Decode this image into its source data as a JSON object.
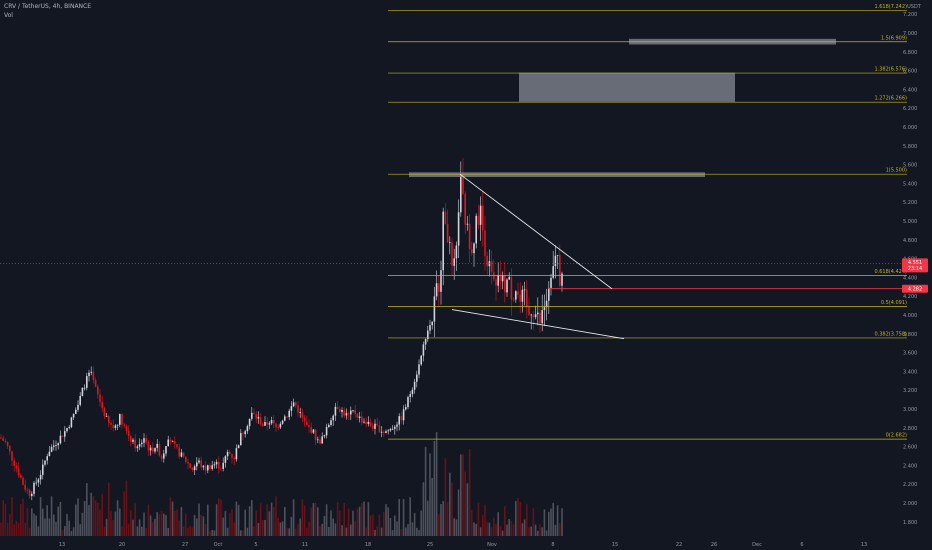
{
  "header": {
    "title": "CRV / TetherUS, 4h, BINANCE",
    "volume_label": "Vol"
  },
  "colors": {
    "background": "#131722",
    "up": "#d1d4dc",
    "down": "#e0151b",
    "fib": "#c6b41f",
    "axis_text": "#9598a1",
    "price_badge": "#f23645",
    "line_badge": "#f23645",
    "zone": "#787b86",
    "trendline": "#e8e8e8"
  },
  "chart_data": {
    "type": "candlestick",
    "symbol": "CRV / TetherUS",
    "timeframe": "4h",
    "exchange": "BINANCE",
    "y_axis": {
      "unit": "USDT",
      "ticks": [
        "7.200",
        "7.000",
        "6.800",
        "6.600",
        "6.400",
        "6.200",
        "6.000",
        "5.800",
        "5.600",
        "5.400",
        "5.200",
        "5.000",
        "4.800",
        "4.600",
        "4.400",
        "4.200",
        "4.000",
        "3.800",
        "3.600",
        "3.400",
        "3.200",
        "3.000",
        "2.800",
        "2.600",
        "2.400",
        "2.200",
        "2.000",
        "1.800"
      ]
    },
    "x_axis": {
      "ticks": [
        "13",
        "20",
        "27",
        "Oct",
        "5",
        "11",
        "18",
        "25",
        "Nov",
        "8",
        "15",
        "22",
        "26",
        "Dec",
        "6",
        "13"
      ]
    },
    "fib_levels": [
      {
        "label": "1.618(7.242)",
        "value": 7.242
      },
      {
        "label": "1.5(6.909)",
        "value": 6.909
      },
      {
        "label": "1.382(6.576)",
        "value": 6.576
      },
      {
        "label": "1.272(6.266)",
        "value": 6.266
      },
      {
        "label": "1(5.500)",
        "value": 5.5
      },
      {
        "label": "0.618(4.424)",
        "value": 4.424
      },
      {
        "label": "0.5(4.091)",
        "value": 4.091
      },
      {
        "label": "0.382(3.758)",
        "value": 3.758
      },
      {
        "label": "0(2.682)",
        "value": 2.682
      }
    ],
    "zones": [
      {
        "from": 6.88,
        "to": 6.94
      },
      {
        "from": 6.27,
        "to": 6.58
      },
      {
        "from": 5.47,
        "to": 5.52
      }
    ],
    "current_price": {
      "value": 4.551,
      "label": "4.551",
      "countdown": "23:14"
    },
    "horizontal_line": {
      "value": 4.282,
      "label": "4.282"
    },
    "trendlines": [
      {
        "from": [
          "Oct 26",
          5.5
        ],
        "to": [
          "Nov 17",
          4.28
        ]
      },
      {
        "from": [
          "Oct 26",
          4.06
        ],
        "to": [
          "Nov 18",
          3.75
        ]
      }
    ],
    "price_path": [
      [
        0,
        2.7
      ],
      [
        6,
        2.64
      ],
      [
        12,
        2.48
      ],
      [
        18,
        2.34
      ],
      [
        24,
        2.18
      ],
      [
        30,
        2.1
      ],
      [
        36,
        2.22
      ],
      [
        42,
        2.35
      ],
      [
        48,
        2.55
      ],
      [
        54,
        2.62
      ],
      [
        60,
        2.7
      ],
      [
        66,
        2.78
      ],
      [
        72,
        2.9
      ],
      [
        78,
        3.05
      ],
      [
        84,
        3.25
      ],
      [
        90,
        3.4
      ],
      [
        96,
        3.2
      ],
      [
        102,
        3.02
      ],
      [
        108,
        2.85
      ],
      [
        114,
        2.8
      ],
      [
        120,
        2.92
      ],
      [
        126,
        2.78
      ],
      [
        132,
        2.65
      ],
      [
        138,
        2.58
      ],
      [
        144,
        2.7
      ],
      [
        150,
        2.55
      ],
      [
        156,
        2.62
      ],
      [
        162,
        2.48
      ],
      [
        168,
        2.72
      ],
      [
        174,
        2.6
      ],
      [
        180,
        2.52
      ],
      [
        186,
        2.45
      ],
      [
        192,
        2.36
      ],
      [
        198,
        2.45
      ],
      [
        204,
        2.36
      ],
      [
        210,
        2.4
      ],
      [
        216,
        2.42
      ],
      [
        222,
        2.38
      ],
      [
        228,
        2.55
      ],
      [
        234,
        2.48
      ],
      [
        240,
        2.7
      ],
      [
        246,
        2.82
      ],
      [
        252,
        2.95
      ],
      [
        258,
        2.9
      ],
      [
        264,
        2.82
      ],
      [
        270,
        2.88
      ],
      [
        276,
        2.8
      ],
      [
        282,
        2.9
      ],
      [
        288,
        2.95
      ],
      [
        294,
        3.08
      ],
      [
        300,
        2.95
      ],
      [
        306,
        2.82
      ],
      [
        312,
        2.78
      ],
      [
        318,
        2.65
      ],
      [
        324,
        2.7
      ],
      [
        330,
        2.88
      ],
      [
        336,
        3.05
      ],
      [
        342,
        2.98
      ],
      [
        348,
        2.92
      ],
      [
        354,
        2.98
      ],
      [
        360,
        2.9
      ],
      [
        366,
        2.86
      ],
      [
        372,
        2.82
      ],
      [
        378,
        2.8
      ],
      [
        384,
        2.76
      ],
      [
        390,
        2.78
      ],
      [
        396,
        2.85
      ],
      [
        402,
        2.92
      ],
      [
        408,
        3.1
      ],
      [
        414,
        3.3
      ],
      [
        420,
        3.5
      ],
      [
        426,
        3.8
      ],
      [
        432,
        3.95
      ],
      [
        436,
        4.25
      ],
      [
        440,
        4.4
      ],
      [
        444,
        5.15
      ],
      [
        448,
        4.85
      ],
      [
        452,
        4.45
      ],
      [
        456,
        4.55
      ],
      [
        460,
        5.5
      ],
      [
        464,
        5.1
      ],
      [
        468,
        4.85
      ],
      [
        472,
        4.75
      ],
      [
        476,
        4.95
      ],
      [
        480,
        5.15
      ],
      [
        484,
        4.8
      ],
      [
        488,
        4.55
      ],
      [
        492,
        4.38
      ],
      [
        496,
        4.25
      ],
      [
        500,
        4.4
      ],
      [
        504,
        4.3
      ],
      [
        508,
        4.38
      ],
      [
        512,
        4.22
      ],
      [
        516,
        4.3
      ],
      [
        520,
        4.12
      ],
      [
        524,
        4.2
      ],
      [
        528,
        3.98
      ],
      [
        532,
        4.1
      ],
      [
        536,
        4.0
      ],
      [
        540,
        3.92
      ],
      [
        544,
        4.08
      ],
      [
        548,
        4.2
      ],
      [
        552,
        4.35
      ],
      [
        556,
        4.72
      ],
      [
        560,
        4.4
      ],
      [
        564,
        4.55
      ]
    ]
  }
}
